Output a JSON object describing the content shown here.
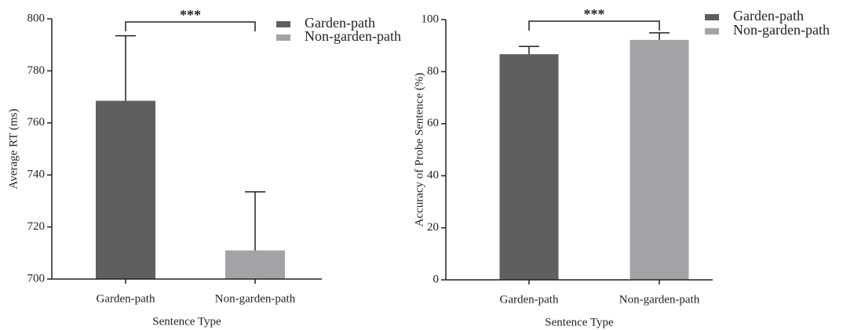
{
  "chart_data": [
    {
      "type": "bar",
      "categories": [
        "Garden-path",
        "Non-garden-path"
      ],
      "values": [
        768.5,
        711
      ],
      "errors": [
        25,
        22.5
      ],
      "colors": [
        "#5f5f5f",
        "#a3a3a7"
      ],
      "xlabel": "Sentence Type",
      "ylabel": "Average RT (ms)",
      "ylim": [
        700,
        800
      ],
      "yticks": [
        700,
        720,
        740,
        760,
        780,
        800
      ],
      "annotation": "***",
      "legend": "top-right"
    },
    {
      "type": "bar",
      "categories": [
        "Garden-path",
        "Non-garden-path"
      ],
      "values": [
        86.7,
        92.2
      ],
      "errors": [
        3,
        2.7
      ],
      "colors": [
        "#5f5f5f",
        "#a3a3a7"
      ],
      "xlabel": "Sentence Type",
      "ylabel": "Accuracy of Probe Sentence (%)",
      "ylim": [
        0,
        100
      ],
      "yticks": [
        0,
        20,
        40,
        60,
        80,
        100
      ],
      "annotation": "***",
      "legend": "top-right"
    }
  ]
}
